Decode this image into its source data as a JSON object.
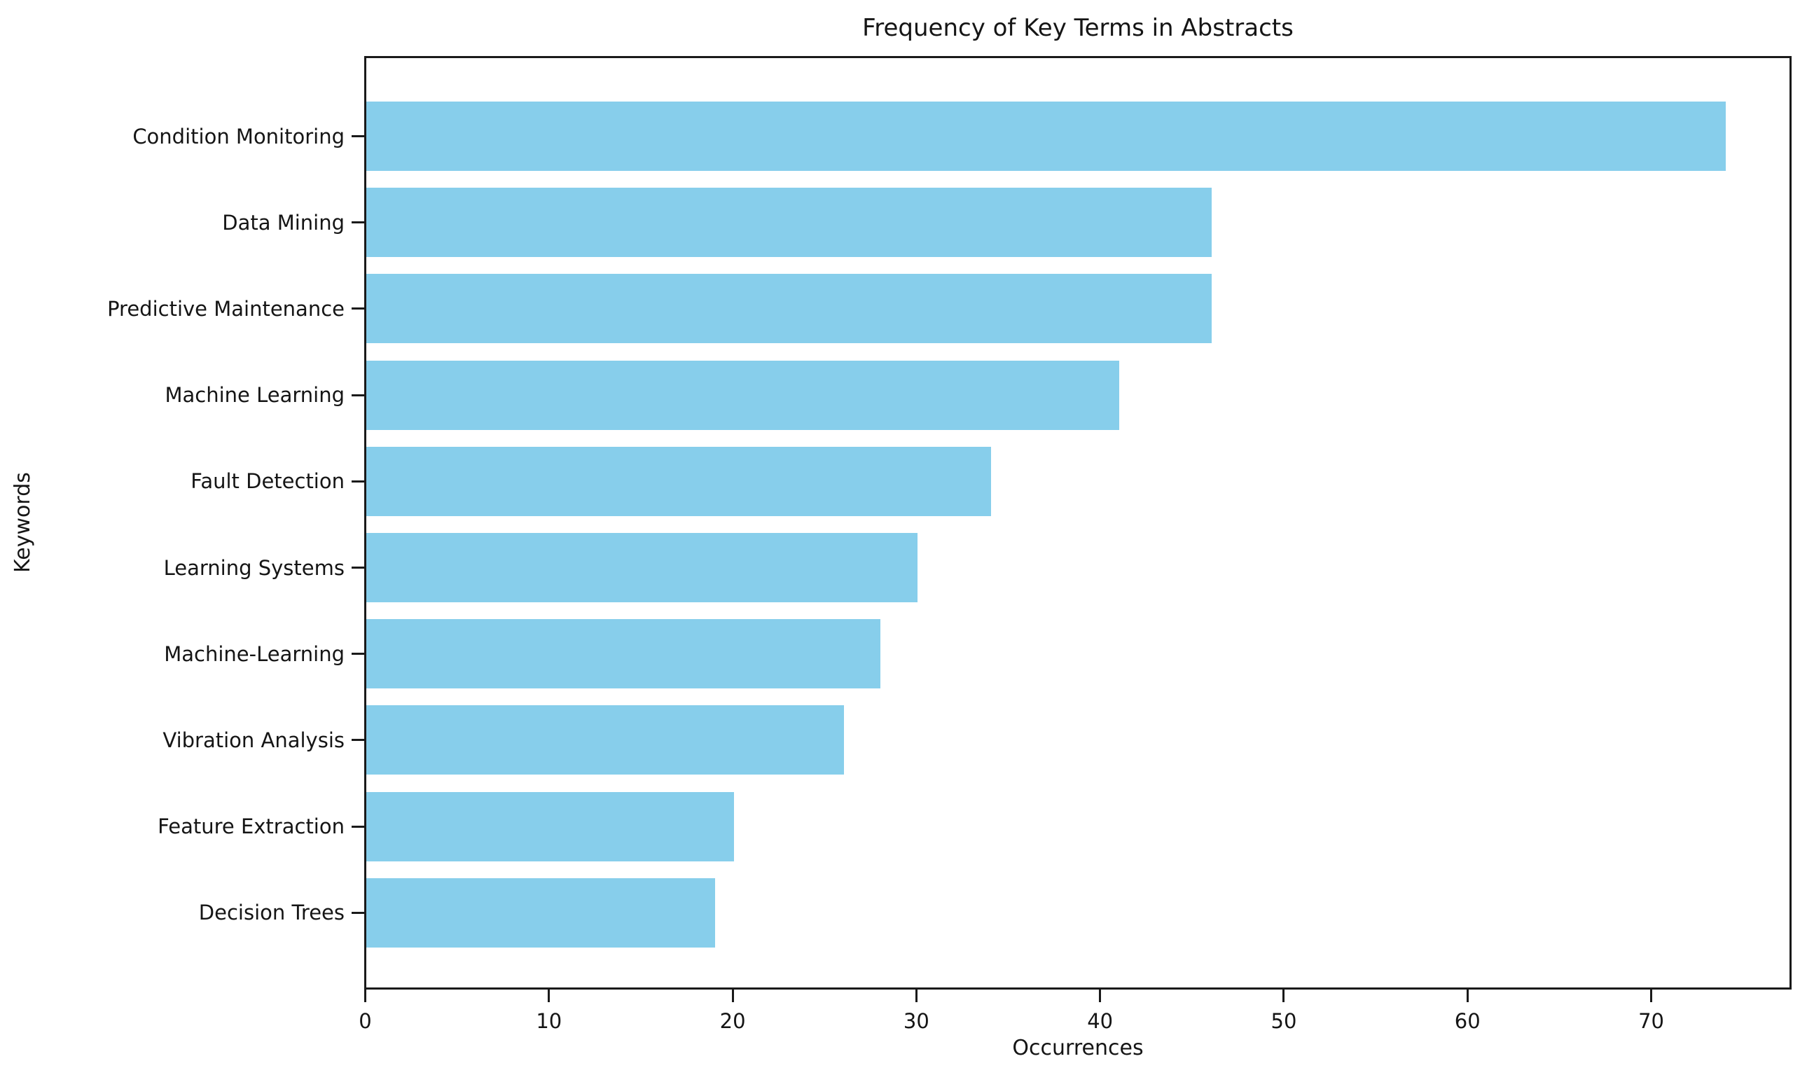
{
  "chart_data": {
    "type": "bar",
    "orientation": "horizontal",
    "title": "Frequency of Key Terms in Abstracts",
    "xlabel": "Occurrences",
    "ylabel": "Keywords",
    "categories": [
      "Condition Monitoring",
      "Data Mining",
      "Predictive Maintenance",
      "Machine Learning",
      "Fault Detection",
      "Learning Systems",
      "Machine-Learning",
      "Vibration Analysis",
      "Feature Extraction",
      "Decision Trees"
    ],
    "values": [
      74,
      46,
      46,
      41,
      34,
      30,
      28,
      26,
      20,
      19
    ],
    "xticks": [
      0,
      10,
      20,
      30,
      40,
      50,
      60,
      70
    ],
    "xlim": [
      0,
      77.7
    ],
    "bar_color": "#87CEEB",
    "spine_color": "#1a1a1a",
    "text_color": "#151515",
    "grid": false,
    "legend": null
  }
}
